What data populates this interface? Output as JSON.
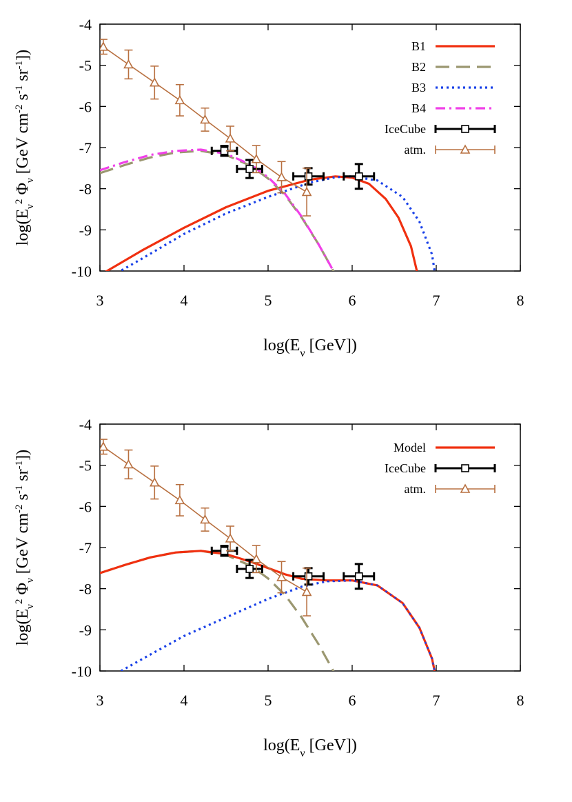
{
  "chart_data": [
    {
      "type": "line",
      "xlabel": "log(E_ν [GeV])",
      "ylabel": "log(E_ν^2 Φ_ν [GeV cm^-2 s^-1 sr^-1])",
      "xlim": [
        3,
        8
      ],
      "ylim": [
        -10,
        -4
      ],
      "xticks": [
        "3",
        "4",
        "5",
        "6",
        "7",
        "8"
      ],
      "yticks": [
        "-4",
        "-5",
        "-6",
        "-7",
        "-8",
        "-9",
        "-10"
      ],
      "grid": false,
      "legend_position": "top-right",
      "series": [
        {
          "name": "B1",
          "color": "#f03010",
          "dash": "solid",
          "x": [
            3.0,
            3.5,
            4.0,
            4.5,
            5.0,
            5.5,
            5.8,
            6.0,
            6.2,
            6.4,
            6.55,
            6.7,
            6.77
          ],
          "y": [
            -10.1,
            -9.5,
            -8.95,
            -8.45,
            -8.05,
            -7.78,
            -7.7,
            -7.73,
            -7.88,
            -8.25,
            -8.7,
            -9.4,
            -10.0
          ]
        },
        {
          "name": "B2",
          "color": "#9b9770",
          "dash": "dashed",
          "x": [
            3.0,
            3.3,
            3.6,
            3.9,
            4.2,
            4.5,
            4.8,
            5.0,
            5.2,
            5.4,
            5.6,
            5.75,
            5.85
          ],
          "y": [
            -7.62,
            -7.42,
            -7.24,
            -7.12,
            -7.08,
            -7.18,
            -7.45,
            -7.75,
            -8.15,
            -8.7,
            -9.35,
            -9.9,
            -10.3
          ]
        },
        {
          "name": "B3",
          "color": "#1840e8",
          "dash": "dotted",
          "x": [
            3.2,
            3.5,
            4.0,
            4.5,
            5.0,
            5.5,
            5.8,
            6.0,
            6.3,
            6.6,
            6.8,
            6.95,
            6.98
          ],
          "y": [
            -10.05,
            -9.7,
            -9.1,
            -8.6,
            -8.2,
            -7.85,
            -7.72,
            -7.7,
            -7.8,
            -8.2,
            -8.8,
            -9.6,
            -10.0
          ]
        },
        {
          "name": "B4",
          "color": "#f040e8",
          "dash": "dashdot",
          "x": [
            3.0,
            3.3,
            3.6,
            3.9,
            4.2,
            4.5,
            4.8,
            5.0,
            5.2,
            5.4,
            5.6,
            5.75,
            5.85
          ],
          "y": [
            -7.55,
            -7.35,
            -7.18,
            -7.08,
            -7.05,
            -7.15,
            -7.42,
            -7.72,
            -8.12,
            -8.68,
            -9.35,
            -9.9,
            -10.3
          ]
        },
        {
          "name": "IceCube",
          "color": "#000000",
          "kind": "errorbar-square",
          "points": [
            {
              "x": 4.48,
              "y": -7.08,
              "xerr": 0.15,
              "yerr_low": 0.12,
              "yerr_high": 0.12
            },
            {
              "x": 4.78,
              "y": -7.52,
              "xerr": 0.15,
              "yerr_low": 0.22,
              "yerr_high": 0.22
            },
            {
              "x": 5.48,
              "y": -7.7,
              "xerr": 0.18,
              "yerr_low": 0.2,
              "yerr_high": 0.2
            },
            {
              "x": 6.08,
              "y": -7.7,
              "xerr": 0.18,
              "yerr_low": 0.3,
              "yerr_high": 0.3
            }
          ]
        },
        {
          "name": "atm.",
          "color": "#b87040",
          "kind": "line-errorbar-triangle",
          "points": [
            {
              "x": 3.04,
              "y": -4.55,
              "yerr": 0.18
            },
            {
              "x": 3.34,
              "y": -4.98,
              "yerr": 0.35
            },
            {
              "x": 3.65,
              "y": -5.42,
              "yerr": 0.4
            },
            {
              "x": 3.95,
              "y": -5.85,
              "yerr": 0.38
            },
            {
              "x": 4.25,
              "y": -6.32,
              "yerr": 0.28
            },
            {
              "x": 4.55,
              "y": -6.78,
              "yerr": 0.3
            },
            {
              "x": 4.86,
              "y": -7.28,
              "yerr": 0.33
            },
            {
              "x": 5.16,
              "y": -7.72,
              "yerr": 0.38
            },
            {
              "x": 5.46,
              "y": -8.08,
              "yerr": 0.58
            }
          ]
        }
      ]
    },
    {
      "type": "line",
      "xlabel": "log(E_ν [GeV])",
      "ylabel": "log(E_ν^2 Φ_ν [GeV cm^-2 s^-1 sr^-1])",
      "xlim": [
        3,
        8
      ],
      "ylim": [
        -10,
        -4
      ],
      "xticks": [
        "3",
        "4",
        "5",
        "6",
        "7",
        "8"
      ],
      "yticks": [
        "-4",
        "-5",
        "-6",
        "-7",
        "-8",
        "-9",
        "-10"
      ],
      "grid": false,
      "legend_position": "top-right",
      "series": [
        {
          "color": "#9b9770",
          "dash": "dashed",
          "x": [
            3.0,
            3.3,
            3.6,
            3.9,
            4.2,
            4.5,
            4.8,
            5.0,
            5.2,
            5.4,
            5.6,
            5.75,
            5.85
          ],
          "y": [
            -7.62,
            -7.42,
            -7.24,
            -7.12,
            -7.08,
            -7.18,
            -7.45,
            -7.75,
            -8.15,
            -8.7,
            -9.35,
            -9.9,
            -10.3
          ]
        },
        {
          "color": "#1840e8",
          "dash": "dotted",
          "x": [
            3.25,
            3.6,
            4.0,
            4.5,
            5.0,
            5.4,
            5.7,
            6.0,
            6.3,
            6.6,
            6.8,
            6.95,
            6.98
          ],
          "y": [
            -10.0,
            -9.6,
            -9.15,
            -8.7,
            -8.25,
            -7.95,
            -7.82,
            -7.8,
            -7.92,
            -8.35,
            -8.95,
            -9.7,
            -10.0
          ]
        },
        {
          "name": "Model",
          "color": "#f03010",
          "dash": "solid",
          "x": [
            3.0,
            3.3,
            3.6,
            3.9,
            4.2,
            4.5,
            4.8,
            5.0,
            5.2,
            5.4,
            5.7,
            6.0,
            6.3,
            6.6,
            6.8,
            6.95,
            6.98
          ],
          "y": [
            -7.62,
            -7.42,
            -7.24,
            -7.12,
            -7.08,
            -7.16,
            -7.35,
            -7.5,
            -7.65,
            -7.76,
            -7.8,
            -7.8,
            -7.92,
            -8.35,
            -8.95,
            -9.7,
            -10.0
          ]
        },
        {
          "name": "IceCube",
          "color": "#000000",
          "kind": "errorbar-square",
          "points": [
            {
              "x": 4.48,
              "y": -7.08,
              "xerr": 0.15,
              "yerr_low": 0.12,
              "yerr_high": 0.12
            },
            {
              "x": 4.78,
              "y": -7.52,
              "xerr": 0.15,
              "yerr_low": 0.22,
              "yerr_high": 0.22
            },
            {
              "x": 5.48,
              "y": -7.7,
              "xerr": 0.18,
              "yerr_low": 0.2,
              "yerr_high": 0.2
            },
            {
              "x": 6.08,
              "y": -7.7,
              "xerr": 0.18,
              "yerr_low": 0.3,
              "yerr_high": 0.3
            }
          ]
        },
        {
          "name": "atm.",
          "color": "#b87040",
          "kind": "line-errorbar-triangle",
          "points": [
            {
              "x": 3.04,
              "y": -4.55,
              "yerr": 0.18
            },
            {
              "x": 3.34,
              "y": -4.98,
              "yerr": 0.35
            },
            {
              "x": 3.65,
              "y": -5.42,
              "yerr": 0.4
            },
            {
              "x": 3.95,
              "y": -5.85,
              "yerr": 0.38
            },
            {
              "x": 4.25,
              "y": -6.32,
              "yerr": 0.28
            },
            {
              "x": 4.55,
              "y": -6.78,
              "yerr": 0.3
            },
            {
              "x": 4.86,
              "y": -7.28,
              "yerr": 0.33
            },
            {
              "x": 5.16,
              "y": -7.72,
              "yerr": 0.38
            },
            {
              "x": 5.46,
              "y": -8.08,
              "yerr": 0.58
            }
          ]
        }
      ]
    }
  ]
}
